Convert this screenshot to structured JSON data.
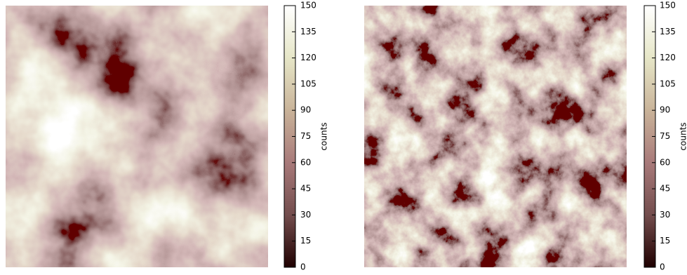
{
  "chart_data": [
    {
      "type": "image",
      "colormap": "pink",
      "colorbar_label": "counts",
      "clim": [
        0,
        150
      ],
      "cticks": [
        0,
        15,
        30,
        45,
        60,
        75,
        90,
        105,
        120,
        135,
        150
      ]
    },
    {
      "type": "image",
      "colormap": "pink",
      "colorbar_label": "counts",
      "clim": [
        0,
        150
      ],
      "cticks": [
        0,
        15,
        30,
        45,
        60,
        75,
        90,
        105,
        120,
        135,
        150
      ]
    }
  ]
}
